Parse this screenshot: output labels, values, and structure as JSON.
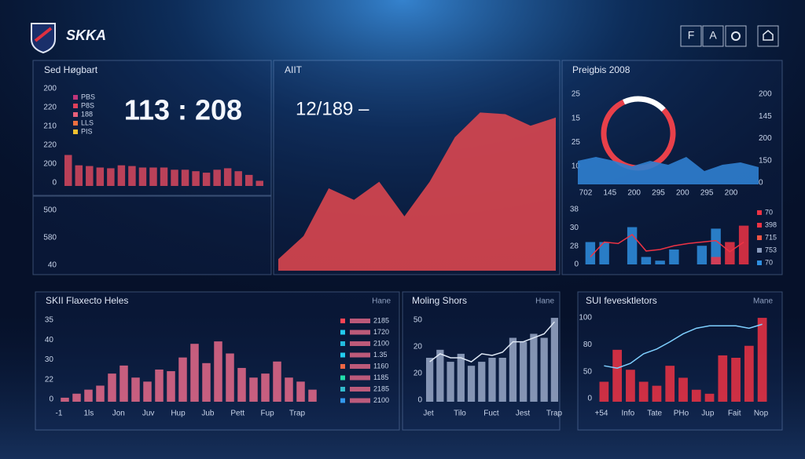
{
  "header": {
    "brand": "SKKA",
    "buttons": [
      "F",
      "A"
    ]
  },
  "chart_data": [
    {
      "type": "bar",
      "title": "Sed Høgbart",
      "headline": "113 : 208",
      "y_labels": [
        "200",
        "220",
        "210",
        "220",
        "200",
        "0"
      ],
      "legend": [
        {
          "label": "PBS",
          "color": "#c0357a"
        },
        {
          "label": "P8S",
          "color": "#e0405a"
        },
        {
          "label": "188",
          "color": "#e8607a"
        },
        {
          "label": "LLS",
          "color": "#f07040"
        },
        {
          "label": "PIS",
          "color": "#f0c030"
        }
      ],
      "ylim": [
        0,
        50
      ],
      "color": "#d9485e",
      "values": [
        42,
        28,
        27,
        25,
        24,
        28,
        27,
        25,
        25,
        25,
        22,
        22,
        20,
        18,
        22,
        24,
        20,
        15,
        7
      ]
    },
    {
      "type": "blank",
      "y_labels": [
        "500",
        "580",
        "40"
      ]
    },
    {
      "type": "area",
      "title": "AIIT",
      "headline": "12/189 –",
      "ylim": [
        0,
        100
      ],
      "color": "#d9464f",
      "values": [
        7,
        21,
        50,
        43,
        54,
        33,
        54,
        81,
        96,
        95,
        88,
        93
      ]
    },
    {
      "type": "donut-area",
      "title": "Preigbis 2008",
      "y_labels": [
        "25",
        "15",
        "25",
        "10"
      ],
      "y2_labels": [
        "200",
        "145",
        "200",
        "150",
        "0"
      ],
      "x_labels": [
        "702",
        "145",
        "200",
        "295",
        "200",
        "295",
        "200"
      ],
      "donut": {
        "values": [
          20,
          80
        ],
        "colors": [
          "#ffffff",
          "#e8404a"
        ]
      },
      "ylim": [
        0,
        60
      ],
      "color": "#2f7fd0",
      "values": [
        30,
        35,
        30,
        23,
        30,
        25,
        35,
        17,
        25,
        28,
        22
      ]
    },
    {
      "type": "bar-line",
      "y_labels": [
        "38",
        "30",
        "28",
        "0"
      ],
      "legend": [
        {
          "label": "70",
          "color": "#ee3344"
        },
        {
          "label": "398",
          "color": "#ee3344"
        },
        {
          "label": "715",
          "color": "#ee5544"
        },
        {
          "label": "753",
          "color": "#8899bb"
        },
        {
          "label": "70",
          "color": "#2f8fe0"
        }
      ],
      "ylim": [
        0,
        60
      ],
      "series": [
        {
          "kind": "bar",
          "color": "#2f8fe0",
          "values": [
            30,
            30,
            null,
            50,
            10,
            5,
            20,
            null,
            25,
            48,
            null,
            null
          ]
        },
        {
          "kind": "bar",
          "color": "#ee3344",
          "values": [
            null,
            null,
            null,
            null,
            null,
            null,
            null,
            null,
            null,
            10,
            30,
            52
          ]
        },
        {
          "kind": "line",
          "color": "#ee3344",
          "values": [
            10,
            30,
            28,
            40,
            18,
            20,
            25,
            28,
            30,
            32,
            17,
            30
          ]
        }
      ]
    },
    {
      "type": "bar-line",
      "title": "SKII Flaxecto Heles",
      "tag": "Hane",
      "y_labels": [
        "35",
        "40",
        "30",
        "22",
        "0"
      ],
      "x_labels": [
        "-1",
        "1ls",
        "Jon",
        "Juv",
        "Hup",
        "Jub",
        "Pett",
        "Fup",
        "Trap"
      ],
      "legend": [
        {
          "label": "2185",
          "color": "#ff4455"
        },
        {
          "label": "1720",
          "color": "#22ccee"
        },
        {
          "label": "2100",
          "color": "#22bbdd"
        },
        {
          "label": "1.35",
          "color": "#22ccee"
        },
        {
          "label": "1160",
          "color": "#ee6644"
        },
        {
          "label": "1185",
          "color": "#22ddaa"
        },
        {
          "label": "2185",
          "color": "#33bbcc"
        },
        {
          "label": "2100",
          "color": "#3399ee"
        }
      ],
      "ylim": [
        0,
        80
      ],
      "series": [
        {
          "kind": "bar",
          "color": "#e86a8a",
          "values": [
            5,
            10,
            15,
            20,
            35,
            45,
            30,
            25,
            40,
            38,
            55,
            72,
            48,
            75,
            60,
            42,
            30,
            35,
            50,
            30,
            25,
            15
          ]
        }
      ]
    },
    {
      "type": "bar-line",
      "title": "Moling Shors",
      "tag": "Hane",
      "y_labels": [
        "50",
        "20",
        "20",
        "0"
      ],
      "x_labels": [
        "Jet",
        "Tilo",
        "Fuct",
        "Jest",
        "Trap"
      ],
      "ylim": [
        0,
        110
      ],
      "series": [
        {
          "kind": "bar",
          "color": "#9aa9c8",
          "values": [
            55,
            65,
            50,
            60,
            45,
            50,
            55,
            55,
            80,
            75,
            85,
            80,
            105
          ]
        },
        {
          "kind": "line",
          "color": "#dfe8f5",
          "values": [
            50,
            60,
            55,
            55,
            50,
            60,
            58,
            62,
            75,
            75,
            80,
            85,
            100
          ]
        }
      ]
    },
    {
      "type": "bar-line",
      "title": "SUI fevesktletors",
      "tag": "Mane",
      "y_labels": [
        "100",
        "80",
        "50",
        "0"
      ],
      "x_labels": [
        "+54",
        "Info",
        "Tate",
        "PHo",
        "Jup",
        "Fait",
        "Nop"
      ],
      "ylim": [
        0,
        110
      ],
      "series": [
        {
          "kind": "bar",
          "color": "#ee3344",
          "values": [
            25,
            65,
            40,
            25,
            20,
            45,
            30,
            15,
            10,
            58,
            55,
            70,
            105
          ]
        },
        {
          "kind": "line",
          "color": "#7fd0ff",
          "values": [
            45,
            42,
            48,
            60,
            66,
            75,
            85,
            92,
            95,
            95,
            95,
            92,
            97
          ]
        }
      ]
    }
  ]
}
